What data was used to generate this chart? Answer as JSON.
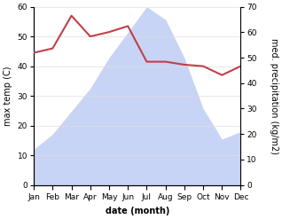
{
  "months": [
    "Jan",
    "Feb",
    "Mar",
    "Apr",
    "May",
    "Jun",
    "Jul",
    "Aug",
    "Sep",
    "Oct",
    "Nov",
    "Dec"
  ],
  "month_indices": [
    1,
    2,
    3,
    4,
    5,
    6,
    7,
    8,
    9,
    10,
    11,
    12
  ],
  "temperature": [
    44.5,
    46.0,
    57.0,
    50.0,
    51.5,
    53.5,
    41.5,
    41.5,
    40.5,
    40.0,
    37.0,
    40.0
  ],
  "precipitation": [
    14,
    20,
    29,
    38,
    50,
    60,
    70,
    65,
    50,
    30,
    18,
    21
  ],
  "temp_color": "#c0404a",
  "precip_fill_color": "#c8d4f5",
  "temp_ylim": [
    0,
    60
  ],
  "precip_ylim": [
    0,
    70
  ],
  "temp_yticks": [
    0,
    10,
    20,
    30,
    40,
    50,
    60
  ],
  "precip_yticks": [
    0,
    10,
    20,
    30,
    40,
    50,
    60,
    70
  ],
  "xlabel": "date (month)",
  "ylabel_left": "max temp (C)",
  "ylabel_right": "med. precipitation (kg/m2)",
  "background_color": "#ffffff",
  "title_fontsize": 7,
  "label_fontsize": 7,
  "tick_fontsize": 6.5
}
